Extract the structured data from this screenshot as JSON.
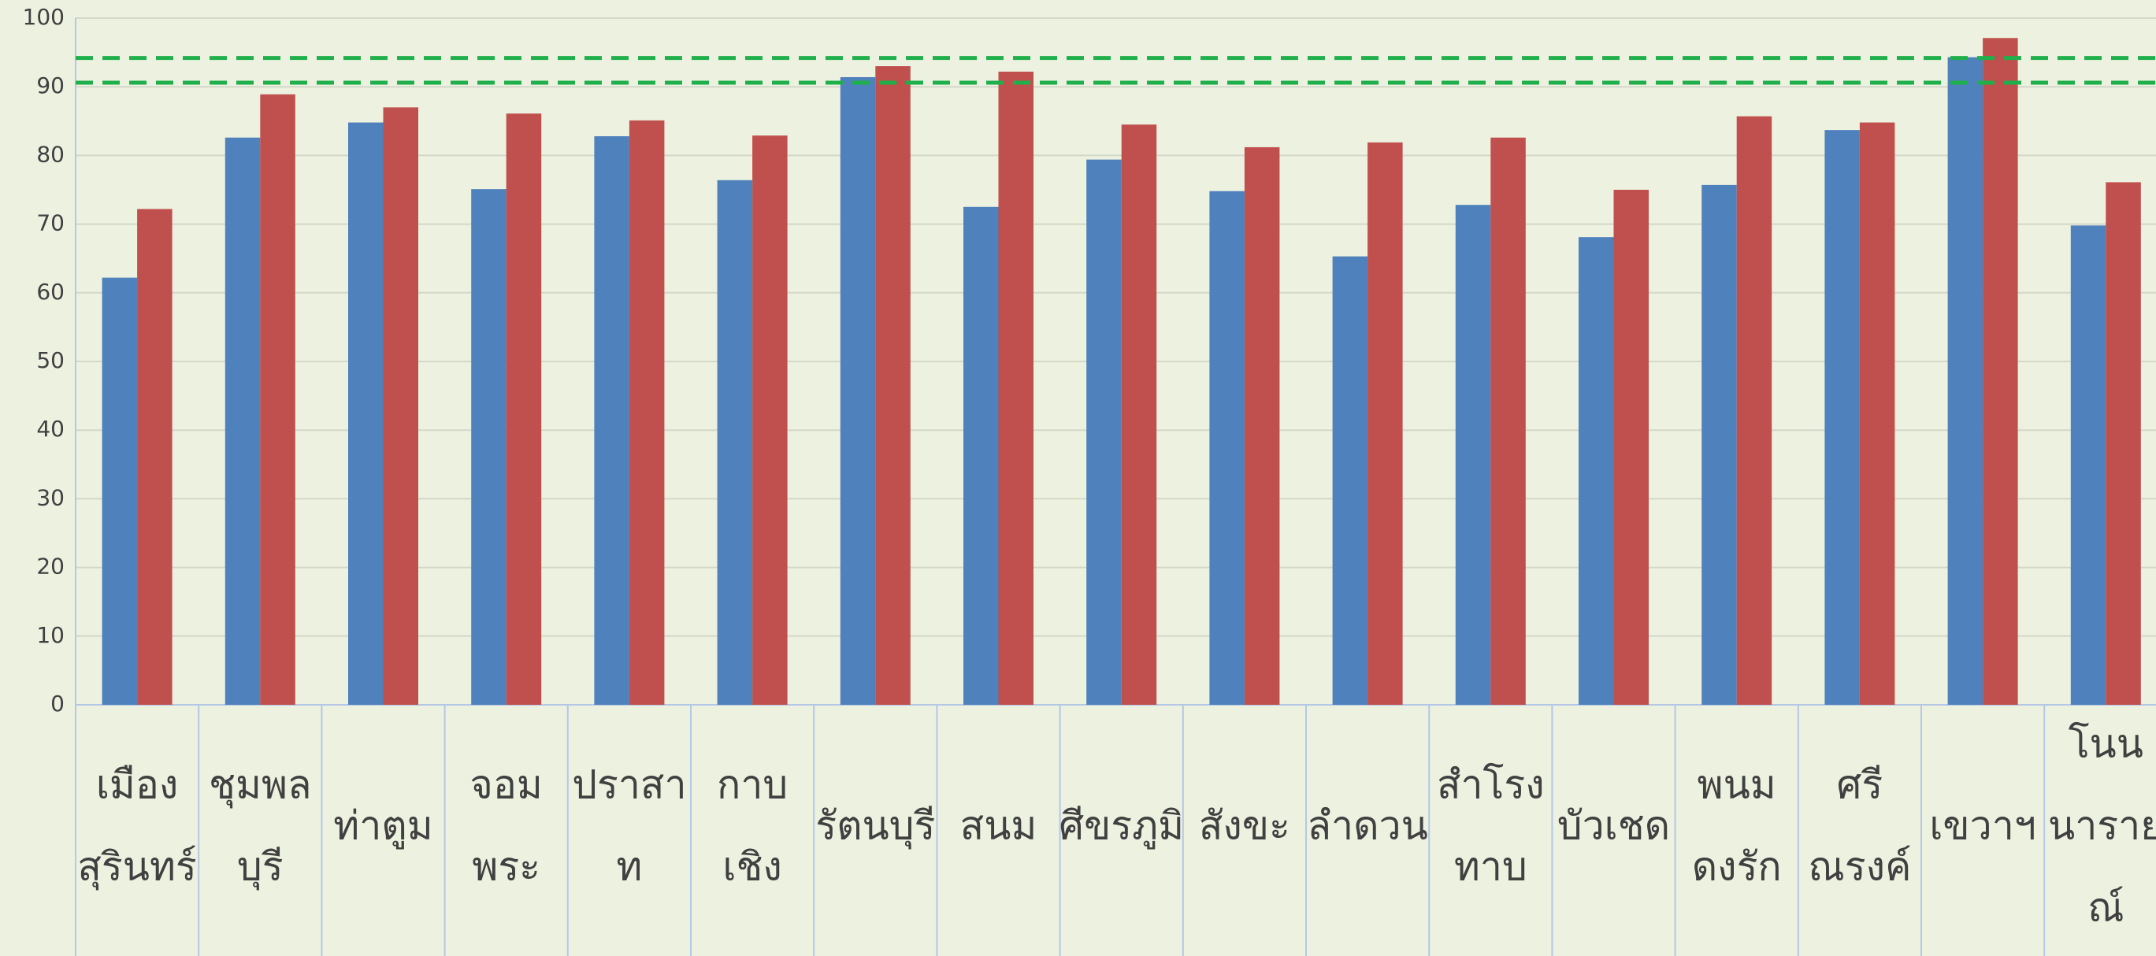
{
  "chart_data": {
    "type": "bar",
    "categories": [
      [
        "เมือง",
        "สุรินทร์"
      ],
      [
        "ชุมพล",
        "บุรี"
      ],
      [
        "ท่าตูม"
      ],
      [
        "จอม",
        "พระ"
      ],
      [
        "ปราสา",
        "ท"
      ],
      [
        "กาบ",
        "เชิง"
      ],
      [
        "รัตนบุรี"
      ],
      [
        "สนม"
      ],
      [
        "ศีขรภูมิ"
      ],
      [
        "สังขะ"
      ],
      [
        "ลำดวน"
      ],
      [
        "สำโรง",
        "ทาบ"
      ],
      [
        "บัวเชด"
      ],
      [
        "พนม",
        "ดงรัก"
      ],
      [
        "ศรี",
        "ณรงค์"
      ],
      [
        "เขวาฯ"
      ],
      [
        "โนน",
        "นาราย",
        "ณ์"
      ]
    ],
    "series": [
      {
        "color": "#4f81bd",
        "values": [
          62.2,
          82.6,
          84.8,
          75.1,
          82.8,
          76.4,
          91.4,
          72.5,
          79.4,
          74.8,
          65.3,
          72.8,
          68.1,
          75.7,
          83.7,
          94.3,
          69.8
        ]
      },
      {
        "color": "#c0504d",
        "values": [
          72.2,
          88.9,
          87.0,
          86.1,
          85.1,
          82.9,
          93.0,
          92.2,
          84.5,
          81.2,
          81.9,
          82.6,
          75.0,
          85.7,
          84.8,
          97.1,
          76.1
        ]
      }
    ],
    "reference_lines": [
      94.2,
      90.6
    ],
    "reference_color": "#1fb04b",
    "ylim": [
      0,
      100
    ],
    "yticks": [
      0,
      10,
      20,
      30,
      40,
      50,
      60,
      70,
      80,
      90,
      100
    ],
    "grid": true
  }
}
